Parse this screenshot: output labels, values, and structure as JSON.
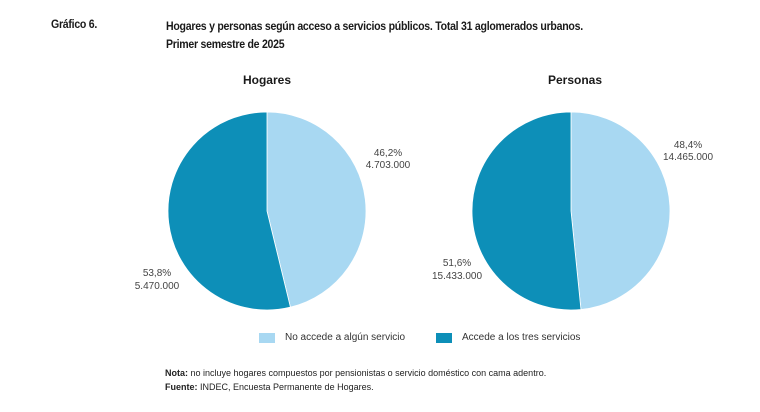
{
  "header": {
    "label": "Gráfico 6.",
    "title_line1": "Hogares y personas según acceso a servicios públicos. Total 31 aglomerados urbanos.",
    "title_line2": "Primer semestre de 2025"
  },
  "colors": {
    "no_accede": "#a8d8f2",
    "accede": "#0d8fb8"
  },
  "legend": [
    {
      "label": "No accede a algún servicio",
      "color": "#a8d8f2"
    },
    {
      "label": "Accede a los tres servicios",
      "color": "#0d8fb8"
    }
  ],
  "notes": {
    "nota_label": "Nota:",
    "nota_text": " no incluye hogares compuestos por pensionistas o servicio doméstico con cama adentro.",
    "fuente_label": "Fuente:",
    "fuente_text": " INDEC, Encuesta Permanente de Hogares."
  },
  "chart_data": [
    {
      "type": "pie",
      "title": "Hogares",
      "categories": [
        "No accede a algún servicio",
        "Accede a los tres servicios"
      ],
      "values": [
        46.2,
        53.8
      ],
      "absolute": [
        4703000,
        5470000
      ],
      "labels": [
        {
          "pct": "46,2%",
          "abs": "4.703.000"
        },
        {
          "pct": "53,8%",
          "abs": "5.470.000"
        }
      ]
    },
    {
      "type": "pie",
      "title": "Personas",
      "categories": [
        "No accede a algún servicio",
        "Accede a los tres servicios"
      ],
      "values": [
        48.4,
        51.6
      ],
      "absolute": [
        14465000,
        15433000
      ],
      "labels": [
        {
          "pct": "48,4%",
          "abs": "14.465.000"
        },
        {
          "pct": "51,6%",
          "abs": "15.433.000"
        }
      ]
    }
  ]
}
